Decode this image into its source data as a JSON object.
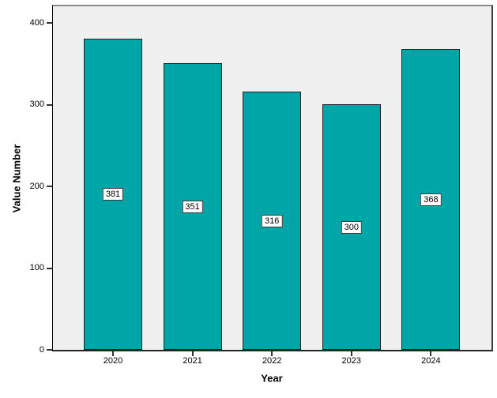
{
  "chart_data": {
    "type": "bar",
    "title": "",
    "categories": [
      "2020",
      "2021",
      "2022",
      "2023",
      "2024"
    ],
    "values": [
      381,
      351,
      316,
      300,
      368
    ],
    "bar_labels": [
      "381",
      "351",
      "316",
      "300",
      "368"
    ],
    "xlabel": "Year",
    "ylabel": "Value Number",
    "ylim": [
      0,
      400
    ],
    "yticks": [
      0,
      100,
      200,
      300,
      400
    ],
    "grid": false,
    "legend": "none",
    "colors": {
      "bar_fill": "#00A6A7",
      "bar_border": "#1F1F1F",
      "plot_background": "#F0F0F0",
      "page_background": "#FFFFFF",
      "frame_top": "#8A8A8A",
      "frame_dark": "#262626",
      "label_box_background": "#FFFFFF",
      "label_box_border": "#3A3A3A",
      "text": "#000000"
    }
  }
}
